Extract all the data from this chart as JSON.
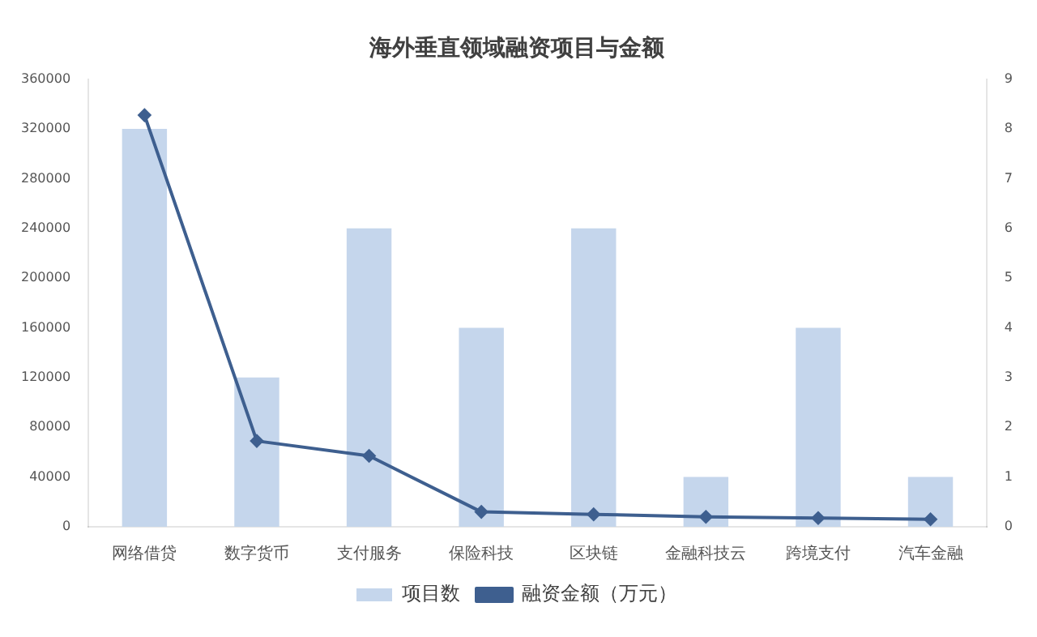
{
  "chart_data": {
    "type": "bar",
    "title": "海外垂直领域融资项目与金额",
    "categories": [
      "网络借贷",
      "数字货币",
      "支付服务",
      "保险科技",
      "区块链",
      "金融科技云",
      "跨境支付",
      "汽车金融"
    ],
    "series": [
      {
        "name": "项目数",
        "axis": "y2",
        "color": "#c5d6ec",
        "values": [
          8,
          3,
          6,
          4,
          6,
          1,
          4,
          1
        ]
      },
      {
        "name": "融资金额（万元）",
        "type": "line",
        "axis": "y",
        "color": "#3e5f8f",
        "marker": "diamond",
        "values": [
          331000,
          69000,
          57000,
          12000,
          10000,
          8000,
          7000,
          6000
        ]
      }
    ],
    "ylim": [
      0,
      360000
    ],
    "yticks": [
      0,
      40000,
      80000,
      120000,
      160000,
      200000,
      240000,
      280000,
      320000,
      360000
    ],
    "y2lim": [
      0,
      9
    ],
    "y2ticks": [
      0,
      1,
      2,
      3,
      4,
      5,
      6,
      7,
      8,
      9
    ],
    "grid": false,
    "legend": "bottom"
  }
}
